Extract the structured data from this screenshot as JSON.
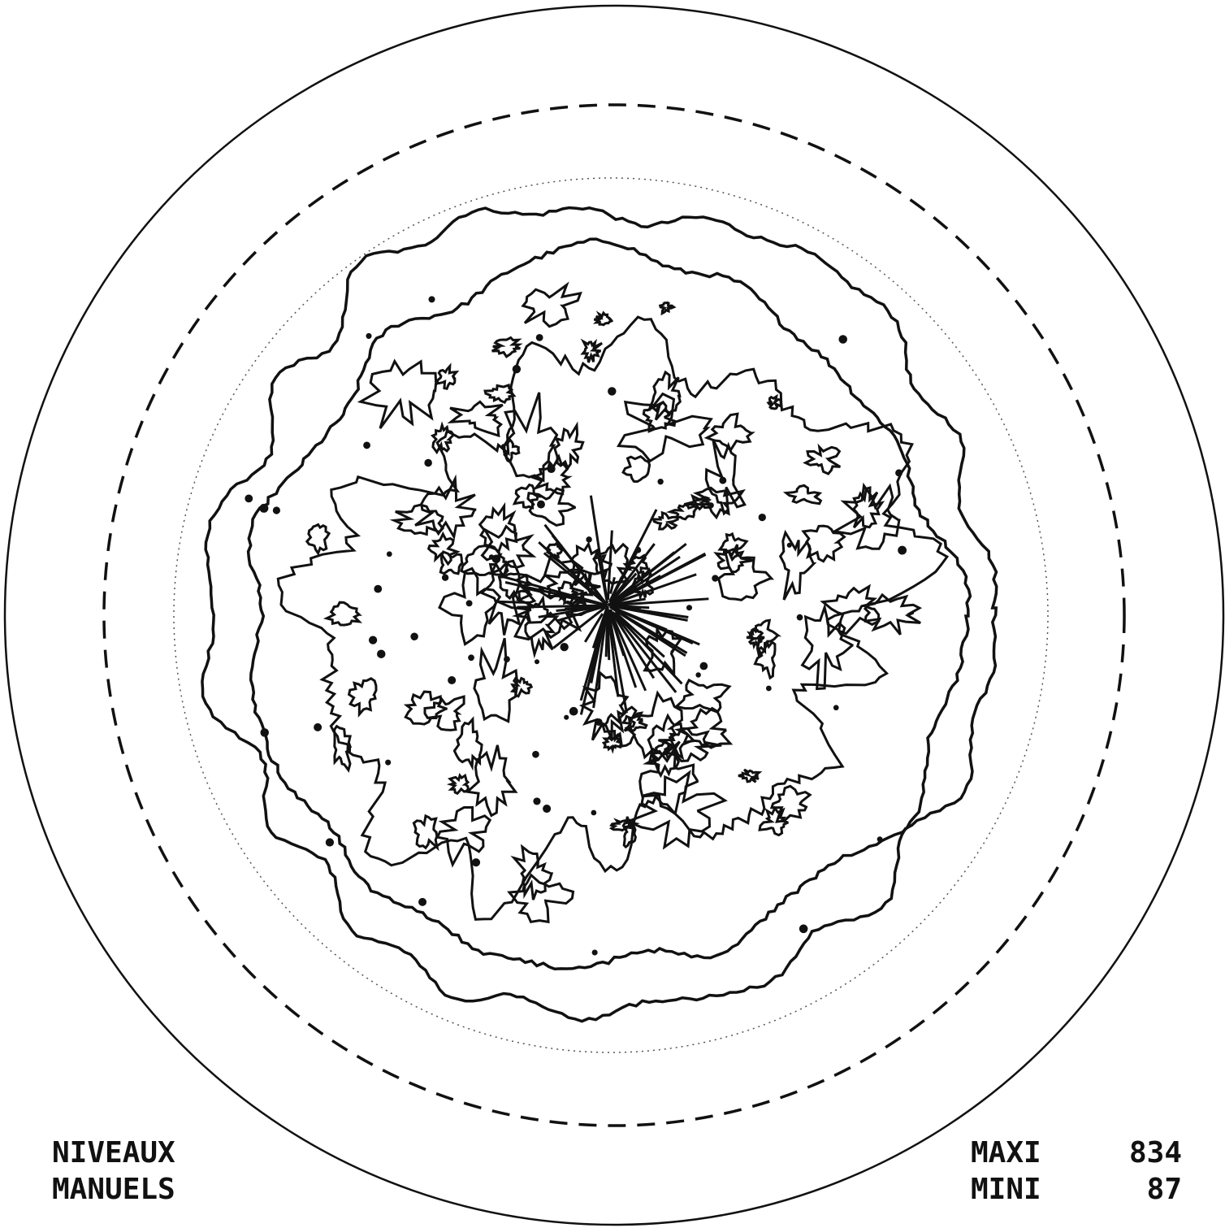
{
  "legend_left": {
    "line1": "NIVEAUX",
    "line2": "MANUELS"
  },
  "legend_right": {
    "max_label": "MAXI",
    "max_value": 834,
    "min_label": "MINI",
    "min_value": 87
  }
}
